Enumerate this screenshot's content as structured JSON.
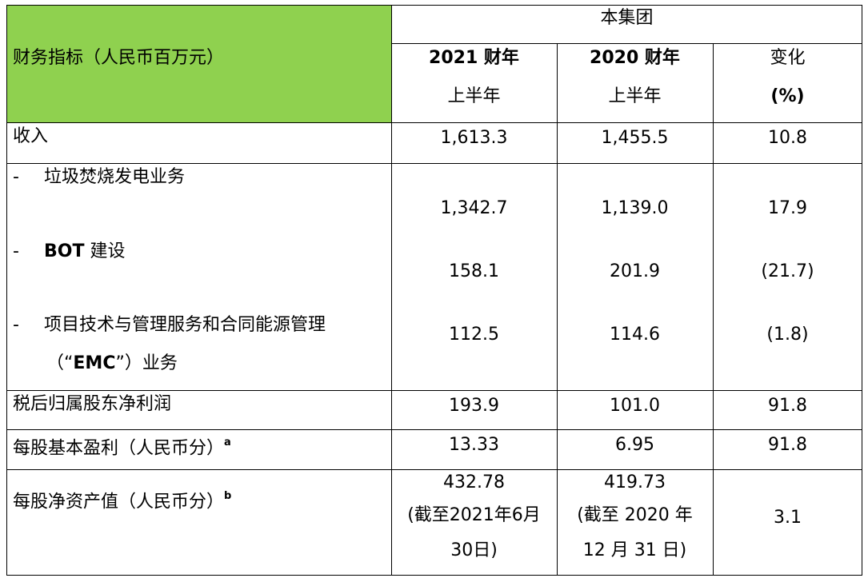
{
  "table": {
    "header": {
      "label": "财务指标（人民币百万元）",
      "group_label": "本集团",
      "col1_line1": "2021 财年",
      "col1_line2": "上半年",
      "col2_line1": "2020 财年",
      "col2_line2": "上半年",
      "col3_line1": "变化",
      "col3_line2": "(%)"
    },
    "rows": {
      "revenue": {
        "label": "收入",
        "v2021": "1,613.3",
        "v2020": "1,455.5",
        "change": "10.8"
      },
      "waste": {
        "dash": "-",
        "label": "垃圾焚烧发电业务",
        "v2021": "1,342.7",
        "v2020": "1,139.0",
        "change": "17.9"
      },
      "bot": {
        "dash": "-",
        "label_bold": "BOT",
        "label_rest": "建设",
        "v2021": "158.1",
        "v2020": "201.9",
        "change": "(21.7)"
      },
      "emc": {
        "dash": "-",
        "label_line1": "项目技术与管理服务和合同能源管理",
        "label_line2_pre": "（“",
        "label_line2_bold": "EMC",
        "label_line2_post": "”）业务",
        "v2021": "112.5",
        "v2020": "114.6",
        "change": "(1.8)"
      },
      "profit": {
        "label": "税后归属股东净利润",
        "v2021": "193.9",
        "v2020": "101.0",
        "change": "91.8"
      },
      "eps": {
        "label": "每股基本盈利（人民币分）",
        "note": "a",
        "v2021": "13.33",
        "v2020": "6.95",
        "change": "91.8"
      },
      "nav": {
        "label": "每股净资产值（人民币分）",
        "note": "b",
        "v2021_line1": "432.78",
        "v2021_line2": "(截至2021年6月",
        "v2021_line3": "30日)",
        "v2020_line1": "419.73",
        "v2020_line2": "(截至 2020 年",
        "v2020_line3": "12 月 31 日)",
        "change": "3.1"
      }
    }
  },
  "colors": {
    "header_green": "#8fd14f",
    "border": "#000000"
  }
}
